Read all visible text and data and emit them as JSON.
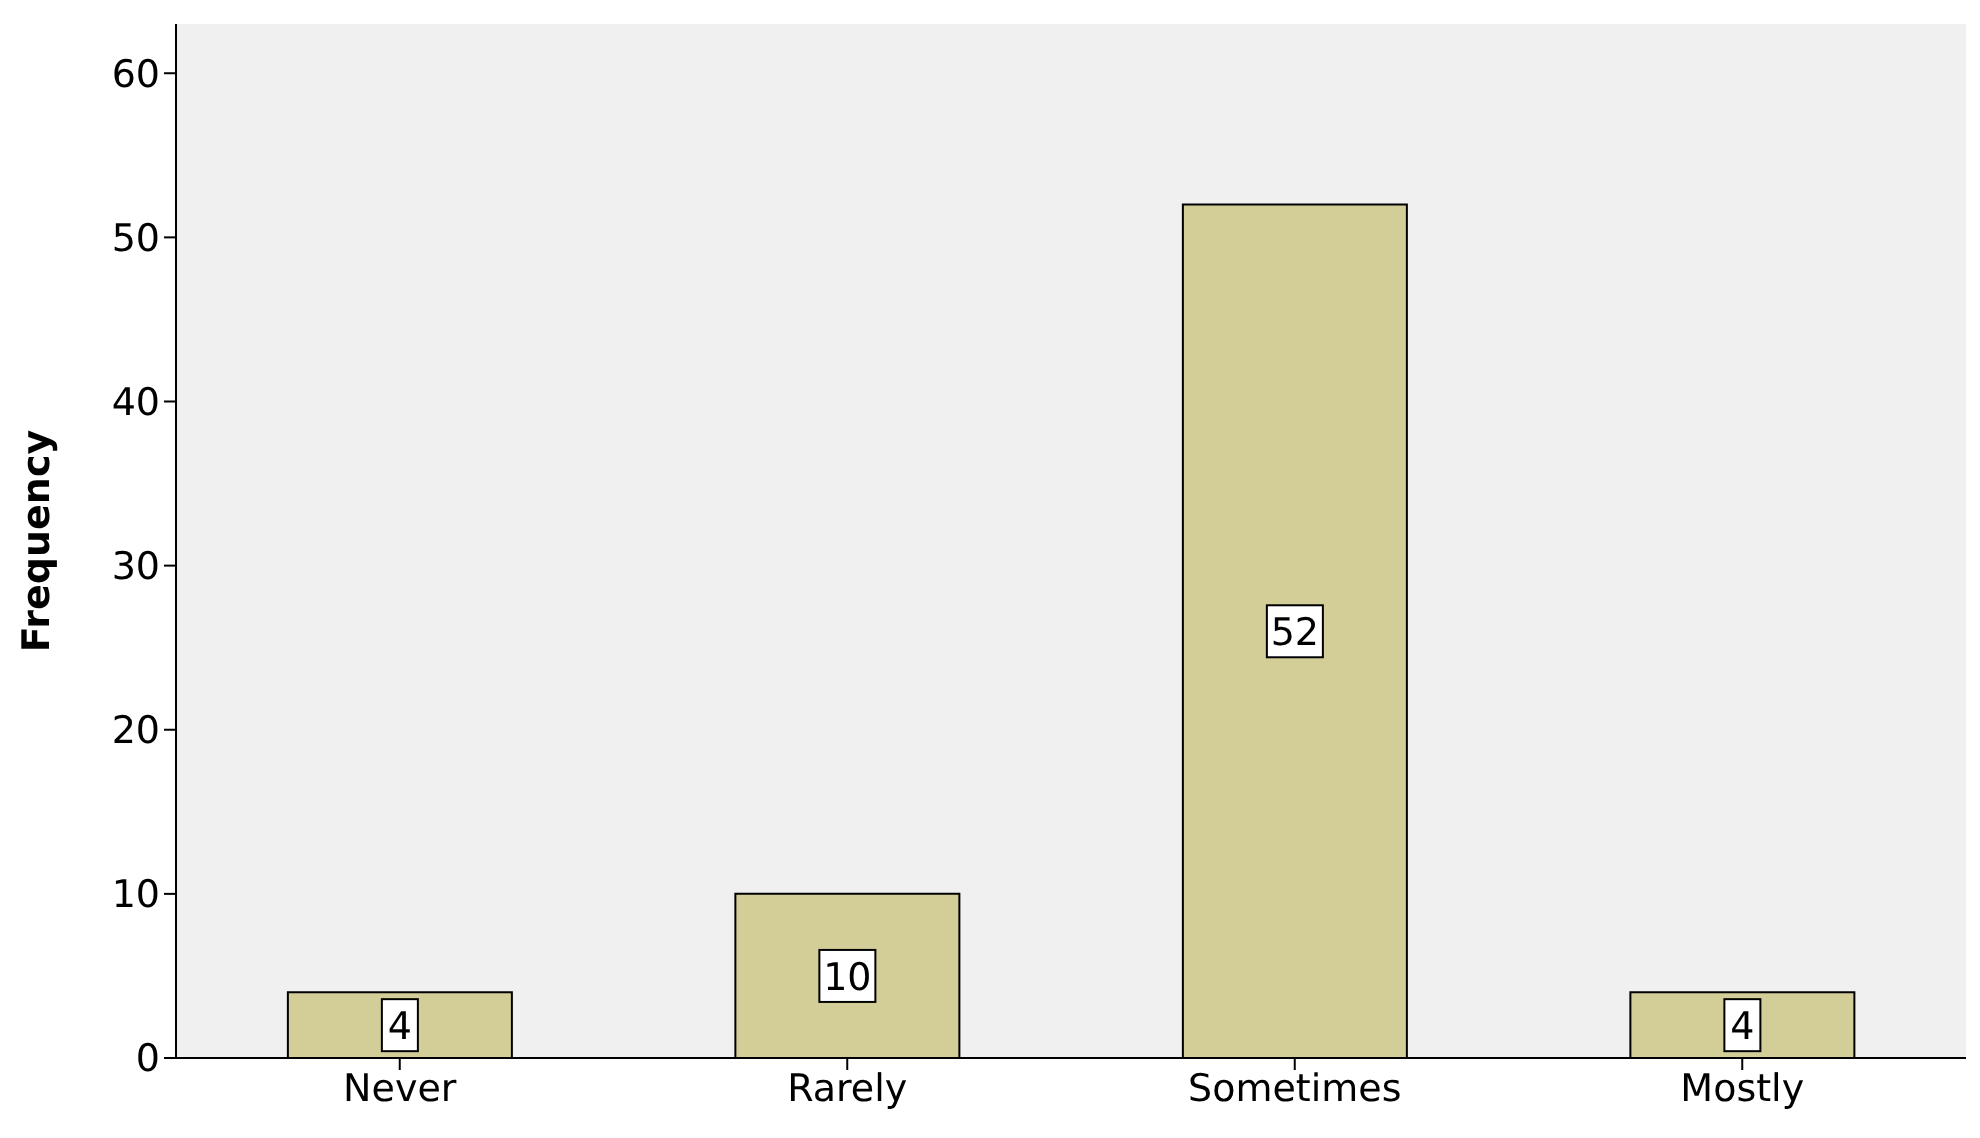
{
  "chart_data": {
    "type": "bar",
    "ylabel": "Frequency",
    "categories": [
      "Never",
      "Rarely",
      "Sometimes",
      "Mostly"
    ],
    "values": [
      4,
      10,
      52,
      4
    ],
    "color": "#d3ce97",
    "ylim": [
      0,
      63
    ],
    "yticks": [
      0,
      10,
      20,
      30,
      40,
      50,
      60
    ],
    "grid": false,
    "data_labels": true
  }
}
